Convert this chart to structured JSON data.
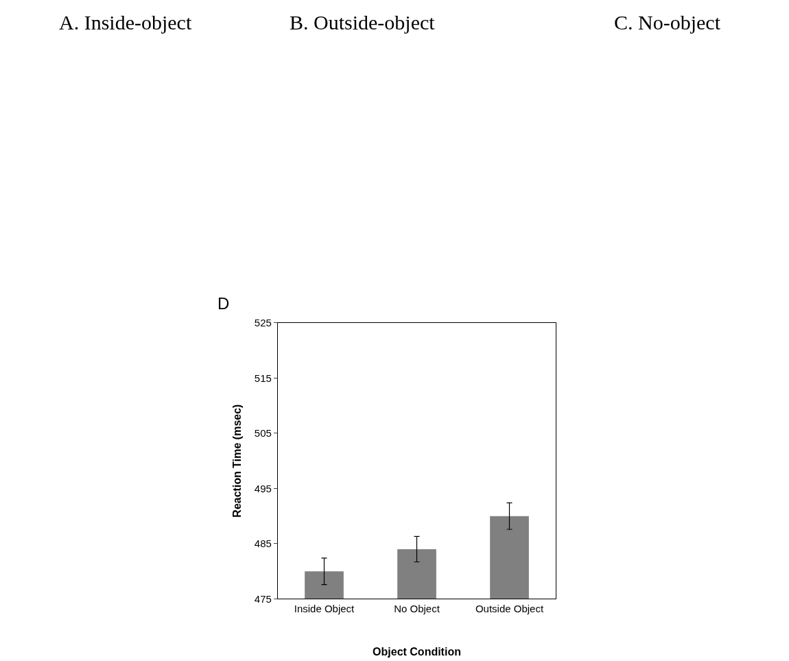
{
  "chart_data": {
    "type": "bar",
    "title": "D",
    "xlabel": "Object Condition",
    "ylabel": "Reaction Time (msec)",
    "categories": [
      "Inside Object",
      "No Object",
      "Outside Object"
    ],
    "values": [
      480,
      484,
      490
    ],
    "errors": [
      2.4,
      2.3,
      2.4
    ],
    "color": "#808080",
    "ylim": [
      475,
      525
    ],
    "yticks": [
      475,
      485,
      495,
      505,
      515,
      525
    ],
    "annotations": [
      "A. Inside-object",
      "B. Outside-object",
      "C. No-object"
    ]
  }
}
